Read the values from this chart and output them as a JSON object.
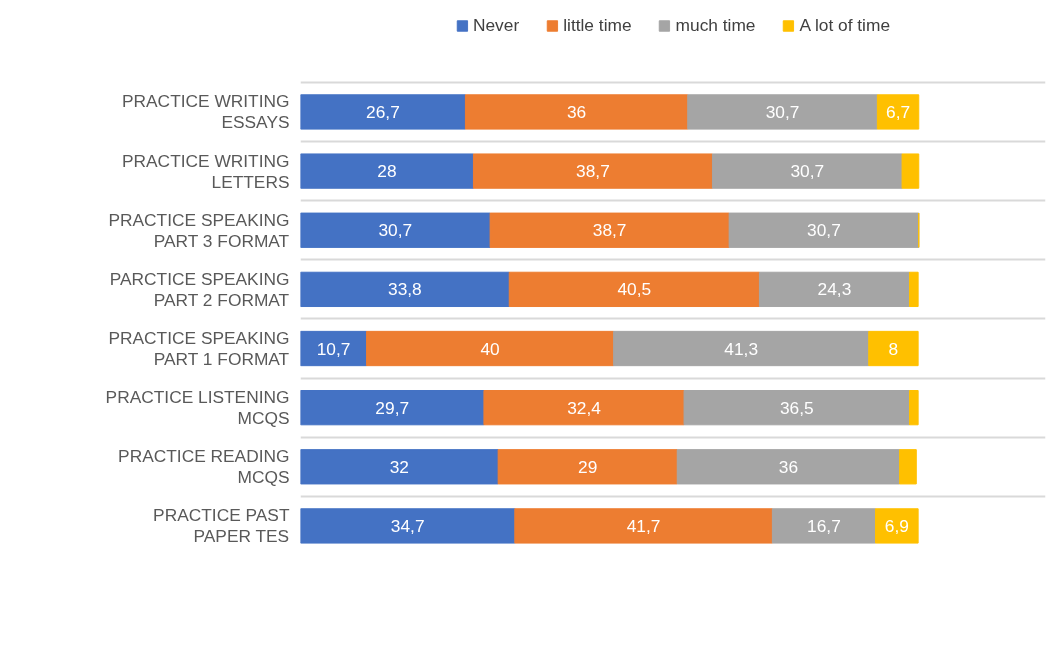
{
  "chart_data": {
    "type": "bar",
    "orientation": "horizontal",
    "stacked": true,
    "categories": [
      "PRACTICE WRITING ESSAYS",
      "PRACTICE WRITING LETTERS",
      "PRACTICE SPEAKING PART 3 FORMAT",
      "PARCTICE SPEAKING PART 2 FORMAT",
      "PRACTICE SPEAKING PART 1 FORMAT",
      "PRACTICE LISTENING MCQS",
      "PRACTICE READING MCQS",
      "PRACTICE PAST PAPER TES"
    ],
    "series": [
      {
        "name": "Never",
        "color": "#4472c4",
        "values": [
          26.7,
          28,
          30.7,
          33.8,
          10.7,
          29.7,
          32,
          34.7
        ],
        "value_labels": [
          "26,7",
          "28",
          "30,7",
          "33,8",
          "10,7",
          "29,7",
          "32",
          "34,7"
        ]
      },
      {
        "name": "little time",
        "color": "#ed7d31",
        "values": [
          36,
          38.7,
          38.7,
          40.5,
          40,
          32.4,
          29,
          41.7
        ],
        "value_labels": [
          "36",
          "38,7",
          "38,7",
          "40,5",
          "40",
          "32,4",
          "29",
          "41,7"
        ]
      },
      {
        "name": "much time",
        "color": "#a5a5a5",
        "values": [
          30.7,
          30.7,
          30.7,
          24.3,
          41.3,
          36.5,
          36,
          16.7
        ],
        "value_labels": [
          "30,7",
          "30,7",
          "30,7",
          "24,3",
          "41,3",
          "36,5",
          "36",
          "16,7"
        ]
      },
      {
        "name": "A lot of time",
        "color": "#ffc000",
        "values": [
          6.7,
          2.7,
          0,
          1.4,
          8,
          1.4,
          2.7,
          6.9
        ],
        "value_labels": [
          "6,7",
          null,
          null,
          null,
          "8",
          null,
          null,
          "6,9"
        ]
      }
    ],
    "grid": "y",
    "legend": "top"
  }
}
